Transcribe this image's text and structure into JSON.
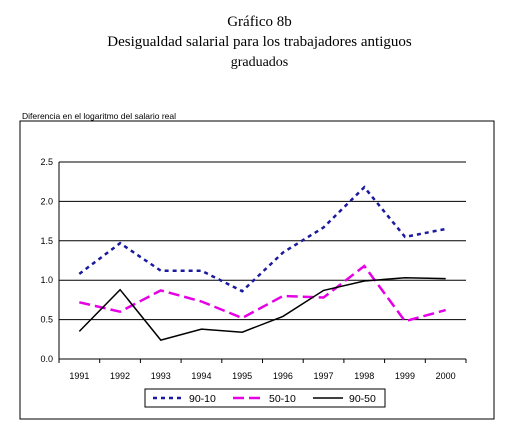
{
  "titles": {
    "line1": "Gráfico 8b",
    "line2": "Desigualdad salarial para los trabajadores antiguos",
    "line3": "graduados"
  },
  "chart_data": {
    "type": "line",
    "ylabel": "Diferencia en el logaritmo del salario real",
    "x": [
      "1991",
      "1992",
      "1993",
      "1994",
      "1995",
      "1996",
      "1997",
      "1998",
      "1999",
      "2000"
    ],
    "yticks": [
      "0.0",
      "0.5",
      "1.0",
      "1.5",
      "2.0",
      "2.5"
    ],
    "ylim": [
      0,
      2.5
    ],
    "grid": "horizontal",
    "legend_position": "bottom",
    "series": [
      {
        "name": "90-10",
        "color": "#1a1aa0",
        "style": "dotted",
        "values": [
          1.08,
          1.47,
          1.12,
          1.12,
          0.86,
          1.35,
          1.67,
          2.18,
          1.55,
          1.65
        ]
      },
      {
        "name": "50-10",
        "color": "#e600e6",
        "style": "dashed",
        "values": [
          0.72,
          0.6,
          0.87,
          0.73,
          0.52,
          0.8,
          0.78,
          1.18,
          0.48,
          0.62
        ]
      },
      {
        "name": "90-50",
        "color": "#000000",
        "style": "solid",
        "values": [
          0.35,
          0.88,
          0.24,
          0.38,
          0.34,
          0.54,
          0.87,
          0.99,
          1.03,
          1.02
        ]
      }
    ]
  }
}
